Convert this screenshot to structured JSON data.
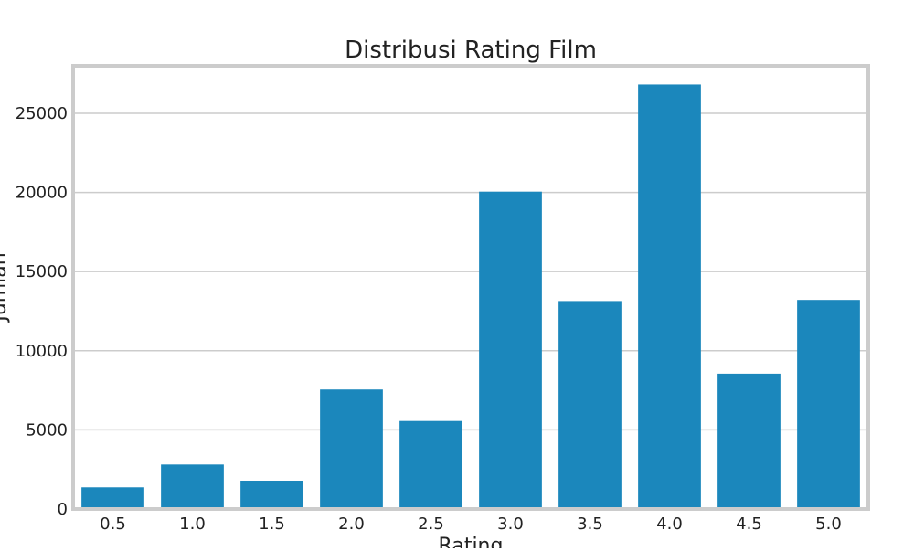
{
  "chart_data": {
    "type": "bar",
    "title": "Distribusi Rating Film",
    "xlabel": "Rating",
    "ylabel": "Jumlah",
    "categories": [
      "0.5",
      "1.0",
      "1.5",
      "2.0",
      "2.5",
      "3.0",
      "3.5",
      "4.0",
      "4.5",
      "5.0"
    ],
    "values": [
      1370,
      2810,
      1790,
      7550,
      5560,
      20050,
      13140,
      26820,
      8550,
      13210
    ],
    "ylim": [
      0,
      28000
    ],
    "yticks": [
      0,
      5000,
      10000,
      15000,
      20000,
      25000
    ],
    "grid": "horizontal",
    "bar_color": "#1b87bc",
    "grid_color": "#cccccc",
    "frame_color": "#cccccc"
  }
}
